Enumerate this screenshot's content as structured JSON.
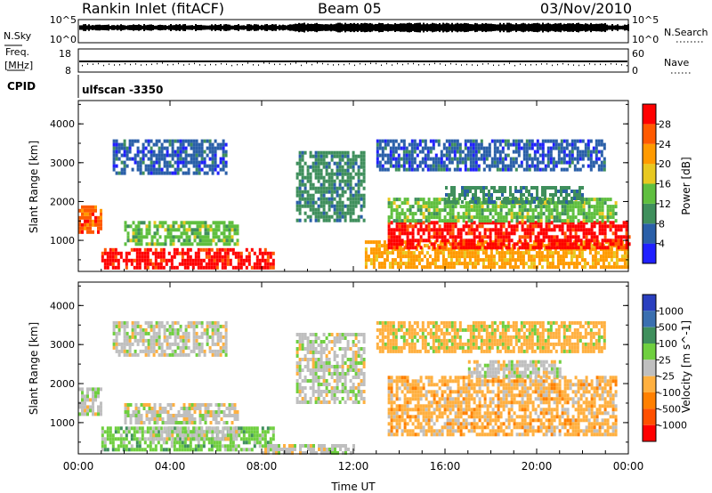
{
  "header": {
    "station": "Rankin Inlet (fitACF)",
    "beam": "Beam 05",
    "date": "03/Nov/2010"
  },
  "top_panels": {
    "nsky_label": "N.Sky",
    "nsky_ticks": [
      "10^5",
      "10^0"
    ],
    "nsearch_label": "N.Search",
    "nsearch_ticks": [
      "10^5",
      "10^0"
    ],
    "freq_label": "Freq.",
    "freq_unit": "[MHz]",
    "freq_ticks": [
      "18",
      "8"
    ],
    "nave_label": "Nave",
    "nave_ticks": [
      "60",
      "0"
    ],
    "cpid_label": "CPID",
    "cpid_value": "ulfscan -3350"
  },
  "colors": {
    "frame": "#000000",
    "power_scale": [
      "#2020ff",
      "#2a5fa8",
      "#3f8f5c",
      "#5fbf3f",
      "#e8c820",
      "#ff9a00",
      "#ff5a00",
      "#ff0000"
    ],
    "velocity_scale": [
      "#2a3fbf",
      "#3a6fb0",
      "#3f8f5c",
      "#6fcf3f",
      "#bfbfbf",
      "#ffb040",
      "#ff8000",
      "#ff5000",
      "#ff0000"
    ]
  },
  "chart_data": [
    {
      "type": "heatmap",
      "title": "Power",
      "xlabel": "",
      "ylabel": "Slant Range [km]",
      "y_ticks": [
        "1000",
        "2000",
        "3000",
        "4000"
      ],
      "ylim": [
        200,
        4600
      ],
      "xlim": [
        "00:00",
        "24:00"
      ],
      "colorbar": {
        "label": "Power [dB]",
        "ticks": [
          "4",
          "8",
          "12",
          "16",
          "20",
          "24",
          "28"
        ],
        "range": [
          0,
          32
        ]
      },
      "regions": [
        {
          "start": "00:00",
          "end": "01:00",
          "range_low": 1200,
          "range_high": 1900,
          "value": 26
        },
        {
          "start": "01:00",
          "end": "08:30",
          "range_low": 300,
          "range_high": 800,
          "value": 28
        },
        {
          "start": "02:00",
          "end": "07:00",
          "range_low": 900,
          "range_high": 1500,
          "value": 14
        },
        {
          "start": "01:30",
          "end": "06:30",
          "range_low": 2700,
          "range_high": 3600,
          "value": 6
        },
        {
          "start": "09:30",
          "end": "12:30",
          "range_low": 1500,
          "range_high": 3300,
          "value": 8
        },
        {
          "start": "12:30",
          "end": "24:00",
          "range_low": 300,
          "range_high": 1000,
          "value": 20
        },
        {
          "start": "13:30",
          "end": "24:00",
          "range_low": 800,
          "range_high": 1500,
          "value": 28
        },
        {
          "start": "13:30",
          "end": "23:30",
          "range_low": 1500,
          "range_high": 2100,
          "value": 14
        },
        {
          "start": "16:00",
          "end": "22:00",
          "range_low": 2000,
          "range_high": 2400,
          "value": 8
        },
        {
          "start": "13:00",
          "end": "23:00",
          "range_low": 2800,
          "range_high": 3600,
          "value": 6
        }
      ]
    },
    {
      "type": "heatmap",
      "title": "Velocity",
      "xlabel": "Time UT",
      "ylabel": "Slant Range [km]",
      "x_ticks": [
        "00:00",
        "04:00",
        "08:00",
        "12:00",
        "16:00",
        "20:00",
        "00:00"
      ],
      "y_ticks": [
        "1000",
        "2000",
        "3000",
        "4000"
      ],
      "ylim": [
        200,
        4600
      ],
      "xlim": [
        "00:00",
        "24:00"
      ],
      "colorbar": {
        "label": "Velocity [m s^-1]",
        "ticks": [
          "1000",
          "500",
          "100",
          "25",
          "-25",
          "-100",
          "-500",
          "-1000"
        ],
        "range": [
          -1200,
          1200
        ]
      },
      "regions": [
        {
          "start": "00:00",
          "end": "01:00",
          "range_low": 1200,
          "range_high": 1900,
          "value": 100
        },
        {
          "start": "01:00",
          "end": "08:30",
          "range_low": 300,
          "range_high": 900,
          "value": 150
        },
        {
          "start": "03:00",
          "end": "07:00",
          "range_low": 600,
          "range_high": 900,
          "value": 0
        },
        {
          "start": "02:00",
          "end": "07:00",
          "range_low": 1000,
          "range_high": 1500,
          "value": 0
        },
        {
          "start": "01:30",
          "end": "06:30",
          "range_low": 2700,
          "range_high": 3600,
          "value": 50
        },
        {
          "start": "09:30",
          "end": "12:30",
          "range_low": 1500,
          "range_high": 3300,
          "value": 80
        },
        {
          "start": "08:00",
          "end": "12:00",
          "range_low": 250,
          "range_high": 450,
          "value": 30
        },
        {
          "start": "13:30",
          "end": "23:30",
          "range_low": 700,
          "range_high": 2200,
          "value": -300
        },
        {
          "start": "17:00",
          "end": "21:00",
          "range_low": 2200,
          "range_high": 2600,
          "value": 0
        },
        {
          "start": "13:00",
          "end": "23:00",
          "range_low": 2800,
          "range_high": 3600,
          "value": -150
        }
      ]
    }
  ]
}
